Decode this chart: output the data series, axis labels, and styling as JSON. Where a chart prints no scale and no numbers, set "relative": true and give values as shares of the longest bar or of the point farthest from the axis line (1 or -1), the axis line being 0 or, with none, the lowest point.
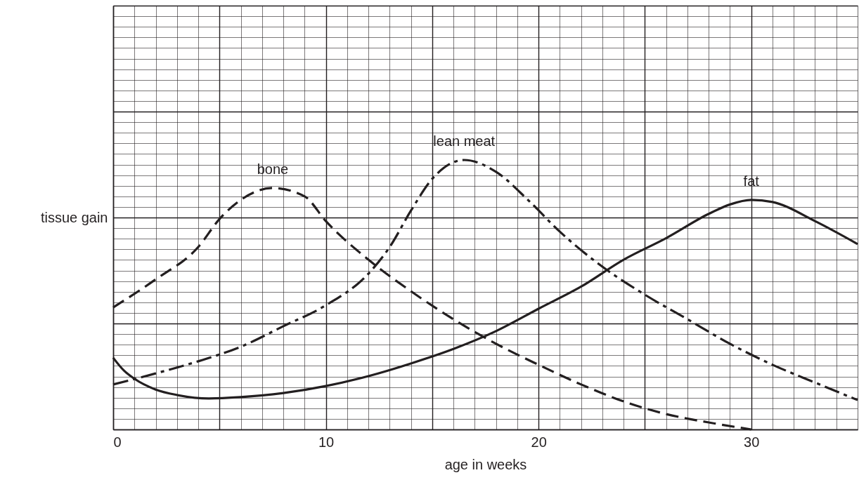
{
  "chart_data": {
    "type": "line",
    "relative": true,
    "xlabel": "age in weeks",
    "ylabel": "tissue gain",
    "xlim": [
      0,
      35
    ],
    "xticks": [
      0,
      {
        "value": 5,
        "label": null
      },
      10,
      {
        "value": 15,
        "label": null
      },
      20,
      {
        "value": 25,
        "label": null
      },
      30
    ],
    "grid": true,
    "tick_labels": "x",
    "series": [
      {
        "name": "bone",
        "color": "#231f20",
        "line_style": "dashed",
        "x": [
          0,
          2,
          4,
          5,
          6,
          7.5,
          9,
          10,
          12,
          14,
          16,
          18,
          20,
          22,
          24,
          26,
          28,
          30
        ],
        "values": [
          0.453,
          0.557,
          0.677,
          0.781,
          0.852,
          0.896,
          0.865,
          0.773,
          0.63,
          0.513,
          0.409,
          0.318,
          0.24,
          0.167,
          0.104,
          0.057,
          0.026,
          0
        ]
      },
      {
        "name": "lean meat",
        "color": "#231f20",
        "line_style": "dashdot",
        "x": [
          0,
          2,
          4,
          6,
          8,
          10,
          12,
          13,
          14,
          15,
          16.5,
          18,
          19.5,
          21,
          23,
          25,
          27,
          29,
          31,
          33,
          35
        ],
        "values": [
          0.167,
          0.208,
          0.253,
          0.307,
          0.383,
          0.461,
          0.578,
          0.677,
          0.812,
          0.93,
          1,
          0.956,
          0.852,
          0.734,
          0.604,
          0.5,
          0.409,
          0.318,
          0.24,
          0.174,
          0.109
        ]
      },
      {
        "name": "fat",
        "color": "#231f20",
        "line_style": "solid",
        "x": [
          0,
          0.5,
          1,
          2,
          3,
          4.5,
          6,
          8,
          10,
          12,
          14,
          16,
          18,
          20,
          22,
          24,
          26,
          28,
          29,
          30,
          31,
          33,
          35
        ],
        "values": [
          0.266,
          0.219,
          0.188,
          0.148,
          0.128,
          0.115,
          0.12,
          0.135,
          0.161,
          0.198,
          0.245,
          0.299,
          0.365,
          0.448,
          0.53,
          0.63,
          0.71,
          0.8,
          0.835,
          0.852,
          0.844,
          0.773,
          0.688
        ]
      }
    ]
  }
}
